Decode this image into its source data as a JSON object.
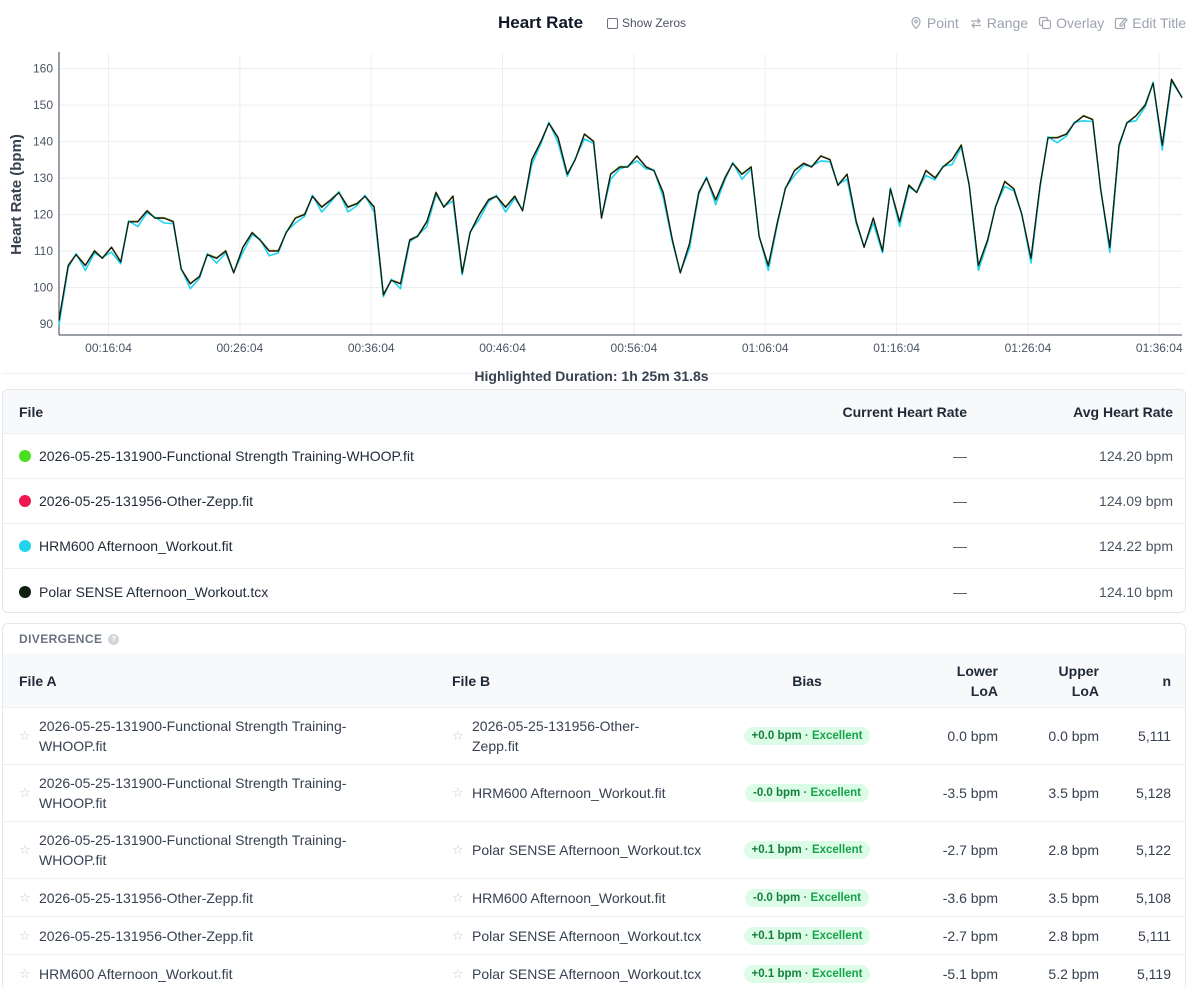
{
  "chart": {
    "title": "Heart Rate",
    "show_zeros_label": "Show Zeros",
    "tools": [
      {
        "label": "Point",
        "icon": "pin-icon"
      },
      {
        "label": "Range",
        "icon": "range-arrows-icon"
      },
      {
        "label": "Overlay",
        "icon": "overlay-icon"
      },
      {
        "label": "Edit Title",
        "icon": "edit-icon"
      }
    ],
    "highlighted_duration": "Highlighted Duration: 1h 25m 31.8s"
  },
  "chart_data": {
    "type": "line",
    "title": "Heart Rate",
    "xlabel": "",
    "ylabel": "Heart Rate (bpm)",
    "ylim": [
      87,
      164
    ],
    "xlim_minutes": [
      12.3,
      97.8
    ],
    "yticks": [
      90,
      100,
      110,
      120,
      130,
      140,
      150,
      160
    ],
    "xtick_labels": [
      "00:16:04",
      "00:26:04",
      "00:36:04",
      "00:46:04",
      "00:56:04",
      "01:06:04",
      "01:16:04",
      "01:26:04",
      "01:36:04"
    ],
    "xtick_minutes": [
      16.07,
      26.07,
      36.07,
      46.07,
      56.07,
      66.07,
      76.07,
      86.07,
      96.07
    ],
    "grid": true,
    "series_colors": [
      "#4ade20",
      "#f0174f",
      "#22d3ee",
      "#0f1f0f"
    ],
    "x_minutes": [
      12.3,
      13,
      13.6,
      14.3,
      15,
      15.6,
      16.3,
      17,
      17.6,
      18.3,
      19,
      19.6,
      20.3,
      21,
      21.6,
      22.3,
      23,
      23.6,
      24.3,
      25,
      25.6,
      26.3,
      27,
      27.6,
      28.3,
      29,
      29.6,
      30.3,
      31,
      31.6,
      32.3,
      33,
      33.6,
      34.3,
      35,
      35.6,
      36.3,
      37,
      37.6,
      38.3,
      39,
      39.6,
      40.3,
      41,
      41.6,
      42.3,
      43,
      43.6,
      44.3,
      45,
      45.6,
      46.3,
      47,
      47.6,
      48.3,
      49,
      49.6,
      50.3,
      51,
      51.6,
      52.3,
      53,
      53.6,
      54.3,
      55,
      55.6,
      56.3,
      57,
      57.6,
      58.3,
      59,
      59.6,
      60.3,
      61,
      61.6,
      62.3,
      63,
      63.6,
      64.3,
      65,
      65.6,
      66.3,
      67,
      67.6,
      68.3,
      69,
      69.6,
      70.3,
      71,
      71.6,
      72.3,
      73,
      73.6,
      74.3,
      75,
      75.6,
      76.3,
      77,
      77.6,
      78.3,
      79,
      79.6,
      80.3,
      81,
      81.6,
      82.3,
      83,
      83.6,
      84.3,
      85,
      85.6,
      86.3,
      87,
      87.6,
      88.3,
      89,
      89.6,
      90.3,
      91,
      91.6,
      92.3,
      93,
      93.6,
      94.3,
      95,
      95.6,
      96.3,
      97,
      97.8
    ],
    "series": [
      {
        "values": [
          91,
          106,
          109,
          106,
          110,
          108,
          111,
          107,
          118,
          118,
          121,
          119,
          119,
          118,
          105,
          101,
          103,
          109,
          108,
          110,
          104,
          111,
          115,
          113,
          110,
          110,
          115,
          119,
          120,
          125,
          122,
          124,
          126,
          122,
          123,
          125,
          122,
          98,
          102,
          101,
          113,
          114,
          118,
          126,
          122,
          125,
          104,
          115,
          120,
          124,
          125,
          122,
          125,
          121,
          135,
          140,
          145,
          141,
          131,
          135,
          142,
          140,
          119,
          131,
          133,
          133,
          136,
          133,
          132,
          126,
          113,
          104,
          112,
          126,
          130,
          124,
          130,
          134,
          131,
          133,
          114,
          106,
          118,
          127,
          132,
          134,
          133,
          136,
          135,
          128,
          131,
          118,
          111,
          119,
          110,
          127,
          118,
          128,
          126,
          132,
          130,
          133,
          135,
          139,
          128,
          106,
          113,
          122,
          129,
          127,
          120,
          108,
          128,
          141,
          141,
          142,
          145,
          147,
          146,
          127,
          111,
          139,
          145,
          147,
          150,
          156,
          139,
          157,
          152
        ]
      }
    ]
  },
  "files_table": {
    "headers": {
      "file": "File",
      "current": "Current Heart Rate",
      "avg": "Avg Heart Rate"
    },
    "rows": [
      {
        "name": "2026-05-25-131900-Functional Strength Training-WHOOP.fit",
        "color": "#4ade20",
        "current": "—",
        "avg": "124.20 bpm"
      },
      {
        "name": "2026-05-25-131956-Other-Zepp.fit",
        "color": "#f0174f",
        "current": "—",
        "avg": "124.09 bpm"
      },
      {
        "name": "HRM600 Afternoon_Workout.fit",
        "color": "#22d3ee",
        "current": "—",
        "avg": "124.22 bpm"
      },
      {
        "name": "Polar SENSE Afternoon_Workout.tcx",
        "color": "#0f1f0f",
        "current": "—",
        "avg": "124.10 bpm"
      }
    ]
  },
  "divergence": {
    "title": "DIVERGENCE",
    "headers": {
      "file_a": "File A",
      "file_b": "File B",
      "bias": "Bias",
      "lower_1": "Lower",
      "lower_2": "LoA",
      "upper_1": "Upper",
      "upper_2": "LoA",
      "n": "n"
    },
    "rows": [
      {
        "a1": "2026-05-25-131900-Functional Strength Training-",
        "a2": "WHOOP.fit",
        "b1": "2026-05-25-131956-Other-",
        "b2": "Zepp.fit",
        "bias": "+0.0 bpm",
        "quality": " · Excellent",
        "lower": "0.0 bpm",
        "upper": "0.0 bpm",
        "n": "5,111"
      },
      {
        "a1": "2026-05-25-131900-Functional Strength Training-",
        "a2": "WHOOP.fit",
        "b1": "HRM600 Afternoon_Workout.fit",
        "b2": "",
        "bias": "-0.0 bpm",
        "quality": " · Excellent",
        "lower": "-3.5 bpm",
        "upper": "3.5 bpm",
        "n": "5,128"
      },
      {
        "a1": "2026-05-25-131900-Functional Strength Training-",
        "a2": "WHOOP.fit",
        "b1": "Polar SENSE Afternoon_Workout.tcx",
        "b2": "",
        "bias": "+0.1 bpm",
        "quality": " · Excellent",
        "lower": "-2.7 bpm",
        "upper": "2.8 bpm",
        "n": "5,122"
      },
      {
        "a1": "2026-05-25-131956-Other-Zepp.fit",
        "a2": "",
        "b1": "HRM600 Afternoon_Workout.fit",
        "b2": "",
        "bias": "-0.0 bpm",
        "quality": " · Excellent",
        "lower": "-3.6 bpm",
        "upper": "3.5 bpm",
        "n": "5,108"
      },
      {
        "a1": "2026-05-25-131956-Other-Zepp.fit",
        "a2": "",
        "b1": "Polar SENSE Afternoon_Workout.tcx",
        "b2": "",
        "bias": "+0.1 bpm",
        "quality": " · Excellent",
        "lower": "-2.7 bpm",
        "upper": "2.8 bpm",
        "n": "5,111"
      },
      {
        "a1": "HRM600 Afternoon_Workout.fit",
        "a2": "",
        "b1": "Polar SENSE Afternoon_Workout.tcx",
        "b2": "",
        "bias": "+0.1 bpm",
        "quality": " · Excellent",
        "lower": "-5.1 bpm",
        "upper": "5.2 bpm",
        "n": "5,119"
      }
    ]
  }
}
